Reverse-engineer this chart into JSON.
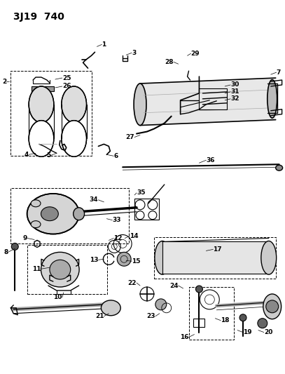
{
  "title": "3J19  740",
  "bg_color": "#ffffff",
  "line_color": "#000000",
  "figsize": [
    4.07,
    5.33
  ],
  "dpi": 100
}
